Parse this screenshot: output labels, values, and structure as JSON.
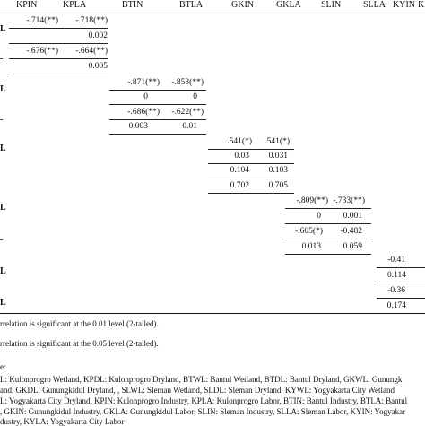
{
  "headers": [
    "KPIN",
    "KPLA",
    "BTIN",
    "BTLA",
    "GKIN",
    "GKLA",
    "SLIN",
    "SLLA",
    "KYIN",
    "K"
  ],
  "row_labels": [
    "L",
    "-",
    "L",
    "-",
    "L",
    "L",
    "-",
    "L",
    "L"
  ],
  "cells": {
    "r1c1": "-.714(**)",
    "r1c2": "-.718(**)",
    "r2c2": "0.002",
    "r3c1": "-.676(**)",
    "r3c2": "-.664(**)",
    "r4c2": "0.005",
    "r5c3": "-.871(**)",
    "r5c4": "-.853(**)",
    "r6c3": "0",
    "r6c4": "0",
    "r7c3": "-.686(**)",
    "r7c4": "-.622(**)",
    "r8c3": "0.003",
    "r8c4": "0.01",
    "r9c5": ".541(*)",
    "r9c6": ".541(*)",
    "r10c5": "0.03",
    "r10c6": "0.031",
    "r11c5": "0.104",
    "r11c6": "0.103",
    "r12c5": "0.702",
    "r12c6": "0.705",
    "r13c7": "-.809(**)",
    "r13c8": "-.733(**)",
    "r14c7": "0",
    "r14c8": "0.001",
    "r15c7": "-.605(*)",
    "r15c8": "-0.482",
    "r16c7": "0.013",
    "r16c8": "0.059",
    "r17c9": "-0.41",
    "r18c9": "0.114",
    "r19c9": "-0.36",
    "r20c9": "0.174"
  },
  "notes": {
    "sig01": "rrelation is significant at the 0.01 level (2-tailed).",
    "sig05": "rrelation is significant at the 0.05 level (2-tailed).",
    "legend_label": "e:",
    "line1": "L: Kulonprogro Wetland, KPDL: Kulonprogro Dryland, BTWL: Bantul Wetland, BTDL: Bantul Dryland, GKWL: Gunungk",
    "line2": "and, GKDL: Gunungkidul Dryland, , SLWL: Sleman Wetland, SLDL: Sleman Dryland, KYWL: Yogyakarta City Wetland",
    "line3": "L: Yogyakarta City Dryland, KPIN: Kulonprogro Industry, KPLA: Kulonprogro Labor, BTIN: Bantul Industry, BTLA: Bantul",
    "line4": ", GKIN: Gunungkidul Industry, GKLA: Gunungkidul Labor, SLIN: Sleman Industry, SLLA: Sleman Labor, KYIN: Yogyakar",
    "line5": "dustry, KYLA: Yogyakarta City Labor"
  }
}
